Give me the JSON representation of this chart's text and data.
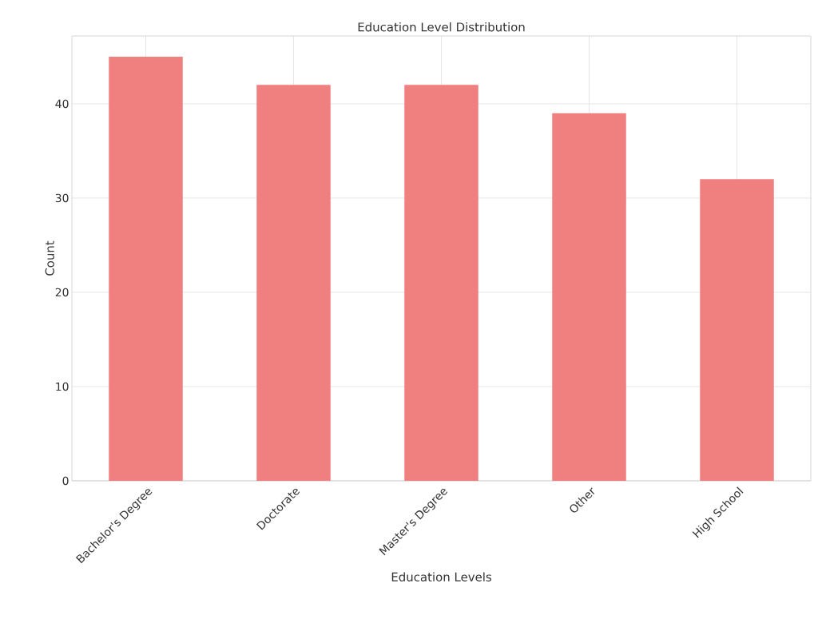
{
  "chart_data": {
    "type": "bar",
    "title": "Education Level Distribution",
    "xlabel": "Education Levels",
    "ylabel": "Count",
    "categories": [
      "Bachelor's Degree",
      "Doctorate",
      "Master's Degree",
      "Other",
      "High School"
    ],
    "values": [
      45,
      42,
      42,
      39,
      32
    ],
    "color": "#f08080",
    "ylim": [
      0,
      47.2
    ],
    "yticks": [
      0,
      10,
      20,
      30,
      40
    ],
    "grid": true
  }
}
